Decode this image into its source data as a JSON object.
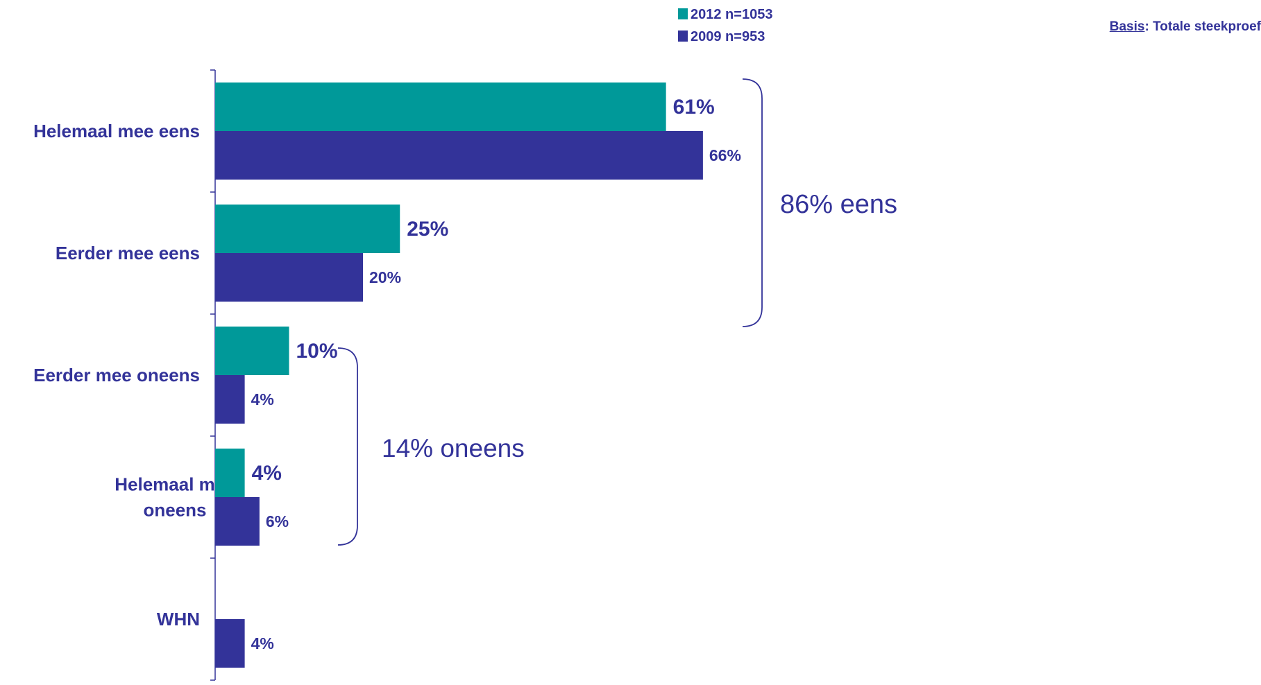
{
  "chart_data": {
    "type": "bar",
    "orientation": "horizontal",
    "categories": [
      "Helemaal mee eens",
      "Eerder mee eens",
      "Eerder mee oneens",
      "Helemaal mee oneens",
      "WHN"
    ],
    "series": [
      {
        "name": "2012 n=1053",
        "color": "#009999",
        "values": [
          61,
          25,
          10,
          4,
          null
        ],
        "labels": [
          "61%",
          "25%",
          "10%",
          "4%",
          ""
        ]
      },
      {
        "name": "2009 n=953",
        "color": "#333399",
        "values": [
          66,
          20,
          4,
          6,
          4
        ],
        "labels": [
          "66%",
          "20%",
          "4%",
          "6%",
          "4%"
        ]
      }
    ],
    "xlim": [
      0,
      100
    ],
    "grid": false,
    "legend": "top-center",
    "annotations": [
      {
        "text": "86% eens",
        "groups": [
          "Helemaal mee eens",
          "Eerder mee eens"
        ]
      },
      {
        "text": "14% oneens",
        "groups": [
          "Eerder mee oneens",
          "Helemaal mee oneens"
        ]
      }
    ]
  },
  "basis": {
    "label": "Basis",
    "text": ": Totale steekproef"
  },
  "colors": {
    "text": "#333399",
    "axis": "#333399"
  }
}
